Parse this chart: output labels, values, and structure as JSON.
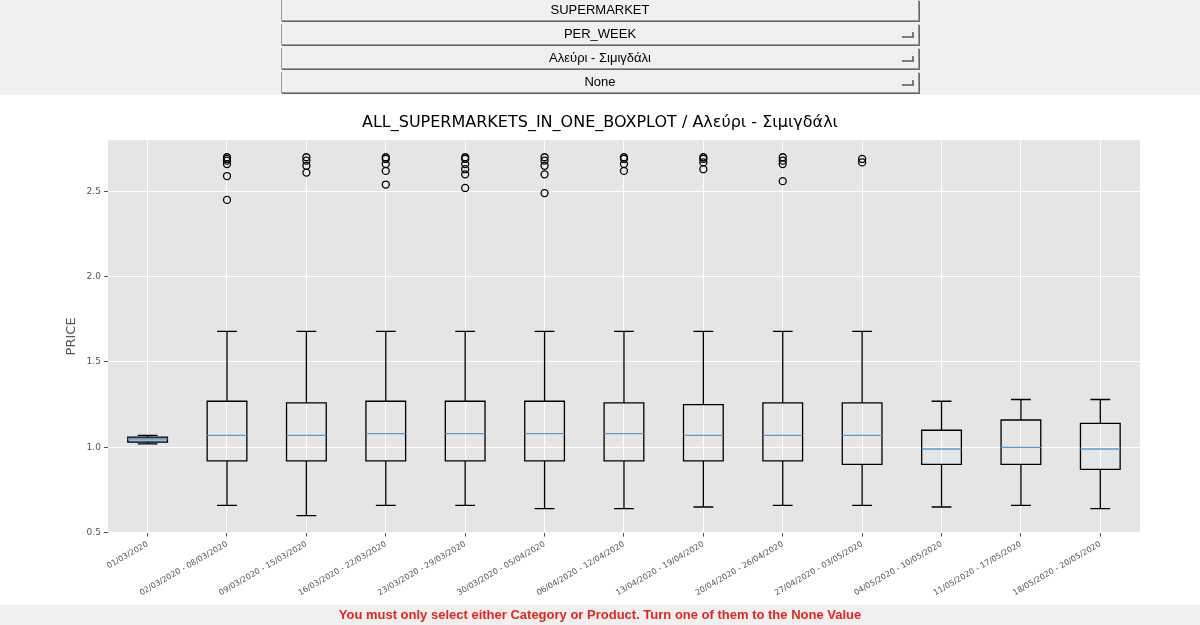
{
  "chart_data": {
    "type": "box",
    "title": "ALL_SUPERMARKETS_IN_ONE_BOXPLOT / Αλεύρι - Σιμιγδάλι",
    "ylabel": "PRICE",
    "categories": [
      "01/03/2020",
      "02/03/2020 - 08/03/2020",
      "09/03/2020 - 15/03/2020",
      "16/03/2020 - 22/03/2020",
      "23/03/2020 - 29/03/2020",
      "30/03/2020 - 05/04/2020",
      "06/04/2020 - 12/04/2020",
      "13/04/2020 - 19/04/2020",
      "20/04/2020 - 26/04/2020",
      "27/04/2020 - 03/05/2020",
      "04/05/2020 - 10/05/2020",
      "11/05/2020 - 17/05/2020",
      "18/05/2020 - 20/05/2020"
    ],
    "boxes": [
      {
        "low": 1.02,
        "q1": 1.03,
        "median": 1.05,
        "q3": 1.06,
        "high": 1.07
      },
      {
        "low": 0.66,
        "q1": 0.92,
        "median": 1.07,
        "q3": 1.27,
        "high": 1.68,
        "outliers": [
          2.45,
          2.59,
          2.66,
          2.68,
          2.69,
          2.7
        ]
      },
      {
        "low": 0.6,
        "q1": 0.92,
        "median": 1.07,
        "q3": 1.26,
        "high": 1.68,
        "outliers": [
          2.61,
          2.65,
          2.68,
          2.7
        ]
      },
      {
        "low": 0.66,
        "q1": 0.92,
        "median": 1.08,
        "q3": 1.27,
        "high": 1.68,
        "outliers": [
          2.54,
          2.62,
          2.66,
          2.69,
          2.7
        ]
      },
      {
        "low": 0.66,
        "q1": 0.92,
        "median": 1.08,
        "q3": 1.27,
        "high": 1.68,
        "outliers": [
          2.52,
          2.6,
          2.63,
          2.66,
          2.69,
          2.7
        ]
      },
      {
        "low": 0.64,
        "q1": 0.92,
        "median": 1.08,
        "q3": 1.27,
        "high": 1.68,
        "outliers": [
          2.49,
          2.6,
          2.65,
          2.68,
          2.7
        ]
      },
      {
        "low": 0.64,
        "q1": 0.92,
        "median": 1.08,
        "q3": 1.26,
        "high": 1.68,
        "outliers": [
          2.62,
          2.66,
          2.69,
          2.7
        ]
      },
      {
        "low": 0.65,
        "q1": 0.92,
        "median": 1.07,
        "q3": 1.25,
        "high": 1.68,
        "outliers": [
          2.63,
          2.67,
          2.69,
          2.7
        ]
      },
      {
        "low": 0.66,
        "q1": 0.92,
        "median": 1.07,
        "q3": 1.26,
        "high": 1.68,
        "outliers": [
          2.56,
          2.66,
          2.68,
          2.7
        ]
      },
      {
        "low": 0.66,
        "q1": 0.9,
        "median": 1.07,
        "q3": 1.26,
        "high": 1.68,
        "outliers": [
          2.67,
          2.69
        ]
      },
      {
        "low": 0.65,
        "q1": 0.9,
        "median": 0.99,
        "q3": 1.1,
        "high": 1.27
      },
      {
        "low": 0.66,
        "q1": 0.9,
        "median": 1.0,
        "q3": 1.16,
        "high": 1.28
      },
      {
        "low": 0.64,
        "q1": 0.87,
        "median": 0.99,
        "q3": 1.14,
        "high": 1.28
      }
    ],
    "colors": [
      "#a3b6c9",
      null,
      null,
      null,
      null,
      null,
      null,
      null,
      null,
      null,
      null,
      null,
      null
    ],
    "color": "#000000",
    "ylim": [
      0.5,
      2.8
    ],
    "yticks": [
      {
        "value": 0.5,
        "label": "0.5"
      },
      {
        "value": 1,
        "label": "1.0"
      },
      {
        "value": 1.5,
        "label": "1.5"
      },
      {
        "value": 2,
        "label": "2.0"
      },
      {
        "value": 2.5,
        "label": "2.5"
      }
    ],
    "grid": true,
    "annotations": [
      "SUPERMARKET",
      "PER_WEEK",
      "Αλεύρι - Σιμιγδάλι",
      "None",
      "You must only select either Category or Product. Turn one of them to the None Value"
    ]
  }
}
